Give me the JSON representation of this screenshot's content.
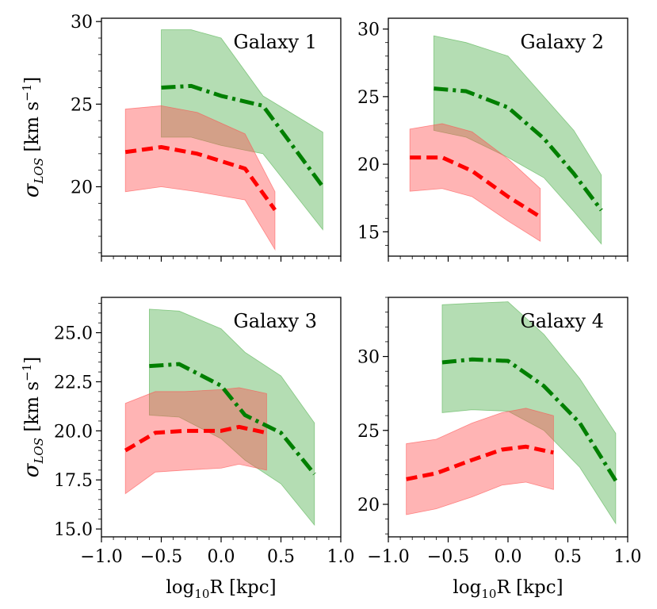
{
  "colors": {
    "green_line": "#007f00",
    "green_band": "#4daf4a",
    "red_line": "#ff0000",
    "red_band": "#ff4d4d"
  },
  "axes": {
    "xlabel_main": "log",
    "xlabel_sub": "10",
    "xlabel_tail": "R [kpc]",
    "ylabel_sigma": "σ",
    "ylabel_sub": "LOS",
    "ylabel_unit": " [km s",
    "ylabel_exp": "−1",
    "ylabel_close": "]"
  },
  "chart_data": [
    {
      "type": "line",
      "title": "Galaxy 1",
      "xlim": [
        -1.0,
        1.0
      ],
      "ylim": [
        15.8,
        30.2
      ],
      "xticks": [
        -1.0,
        -0.5,
        0.0,
        0.5,
        1.0
      ],
      "xtick_labels": [],
      "yticks": [
        20,
        25,
        30
      ],
      "ytick_labels": [
        "20",
        "25",
        "30"
      ],
      "series": [
        {
          "color": "green",
          "style": "dashdot",
          "x": [
            -0.5,
            -0.25,
            0.0,
            0.35,
            0.85
          ],
          "y": [
            26.0,
            26.1,
            25.5,
            24.9,
            20.0
          ],
          "upper": [
            29.5,
            29.5,
            29.0,
            25.5,
            23.3
          ],
          "lower": [
            23.0,
            23.0,
            22.5,
            22.0,
            17.4
          ]
        },
        {
          "color": "red",
          "style": "dashed",
          "x": [
            -0.8,
            -0.5,
            -0.2,
            0.2,
            0.45
          ],
          "y": [
            22.1,
            22.4,
            22.0,
            21.1,
            18.6
          ],
          "upper": [
            24.7,
            24.9,
            24.5,
            23.2,
            19.7
          ],
          "lower": [
            19.7,
            20.0,
            19.7,
            19.2,
            16.2
          ]
        }
      ]
    },
    {
      "type": "line",
      "title": "Galaxy 2",
      "xlim": [
        -1.0,
        1.0
      ],
      "ylim": [
        13.2,
        30.8
      ],
      "xticks": [
        -1.0,
        -0.5,
        0.0,
        0.5,
        1.0
      ],
      "xtick_labels": [],
      "yticks": [
        15,
        20,
        25,
        30
      ],
      "ytick_labels": [
        "15",
        "20",
        "25",
        "30"
      ],
      "series": [
        {
          "color": "green",
          "style": "dashdot",
          "x": [
            -0.62,
            -0.35,
            0.0,
            0.3,
            0.55,
            0.78
          ],
          "y": [
            25.6,
            25.4,
            24.2,
            21.9,
            19.3,
            16.6
          ],
          "upper": [
            29.5,
            29.0,
            28.0,
            25.0,
            22.5,
            19.2
          ],
          "lower": [
            22.5,
            22.0,
            20.5,
            19.0,
            16.5,
            14.1
          ]
        },
        {
          "color": "red",
          "style": "dashed",
          "x": [
            -0.82,
            -0.55,
            -0.3,
            0.0,
            0.27
          ],
          "y": [
            20.5,
            20.5,
            19.5,
            17.6,
            16.1
          ],
          "upper": [
            22.6,
            23.0,
            22.4,
            20.4,
            18.2
          ],
          "lower": [
            18.0,
            18.2,
            17.6,
            15.8,
            14.3
          ]
        }
      ]
    },
    {
      "type": "line",
      "title": "Galaxy 3",
      "xlim": [
        -1.0,
        1.0
      ],
      "ylim": [
        14.6,
        26.8
      ],
      "xticks": [
        -1.0,
        -0.5,
        0.0,
        0.5,
        1.0
      ],
      "xtick_labels": [
        "−1.0",
        "−0.5",
        "0.0",
        "0.5",
        "1.0"
      ],
      "yticks": [
        15.0,
        17.5,
        20.0,
        22.5,
        25.0
      ],
      "ytick_labels": [
        "15.0",
        "17.5",
        "20.0",
        "22.5",
        "25.0"
      ],
      "series": [
        {
          "color": "green",
          "style": "dashdot",
          "x": [
            -0.6,
            -0.35,
            0.0,
            0.2,
            0.5,
            0.78
          ],
          "y": [
            23.3,
            23.4,
            22.3,
            20.8,
            19.9,
            17.8
          ],
          "upper": [
            26.2,
            26.1,
            25.2,
            24.0,
            22.8,
            20.4
          ],
          "lower": [
            20.8,
            20.7,
            19.6,
            18.5,
            17.3,
            15.2
          ]
        },
        {
          "color": "red",
          "style": "dashed",
          "x": [
            -0.8,
            -0.55,
            -0.3,
            0.0,
            0.15,
            0.38
          ],
          "y": [
            19.0,
            19.9,
            20.0,
            20.0,
            20.2,
            19.9
          ],
          "upper": [
            21.4,
            22.0,
            22.0,
            22.1,
            22.2,
            21.9
          ],
          "lower": [
            16.8,
            17.9,
            18.0,
            18.1,
            18.3,
            18.0
          ]
        }
      ]
    },
    {
      "type": "line",
      "title": "Galaxy 4",
      "xlim": [
        -1.0,
        1.0
      ],
      "ylim": [
        17.8,
        34.0
      ],
      "xticks": [
        -1.0,
        -0.5,
        0.0,
        0.5,
        1.0
      ],
      "xtick_labels": [
        "−1.0",
        "−0.5",
        "0.0",
        "0.5",
        "1.0"
      ],
      "yticks": [
        20,
        25,
        30
      ],
      "ytick_labels": [
        "20",
        "25",
        "30"
      ],
      "series": [
        {
          "color": "green",
          "style": "dashdot",
          "x": [
            -0.55,
            -0.3,
            0.0,
            0.3,
            0.6,
            0.9
          ],
          "y": [
            29.6,
            29.8,
            29.7,
            28.0,
            25.5,
            21.6
          ],
          "upper": [
            33.5,
            33.6,
            33.7,
            31.5,
            28.5,
            24.8
          ],
          "lower": [
            26.2,
            26.4,
            26.3,
            25.0,
            22.5,
            18.7
          ]
        },
        {
          "color": "red",
          "style": "dashed",
          "x": [
            -0.85,
            -0.6,
            -0.3,
            -0.05,
            0.15,
            0.38
          ],
          "y": [
            21.7,
            22.1,
            23.0,
            23.7,
            23.9,
            23.5
          ],
          "upper": [
            24.1,
            24.4,
            25.5,
            26.2,
            26.5,
            26.0
          ],
          "lower": [
            19.3,
            19.7,
            20.5,
            21.3,
            21.5,
            21.0
          ]
        }
      ]
    }
  ]
}
